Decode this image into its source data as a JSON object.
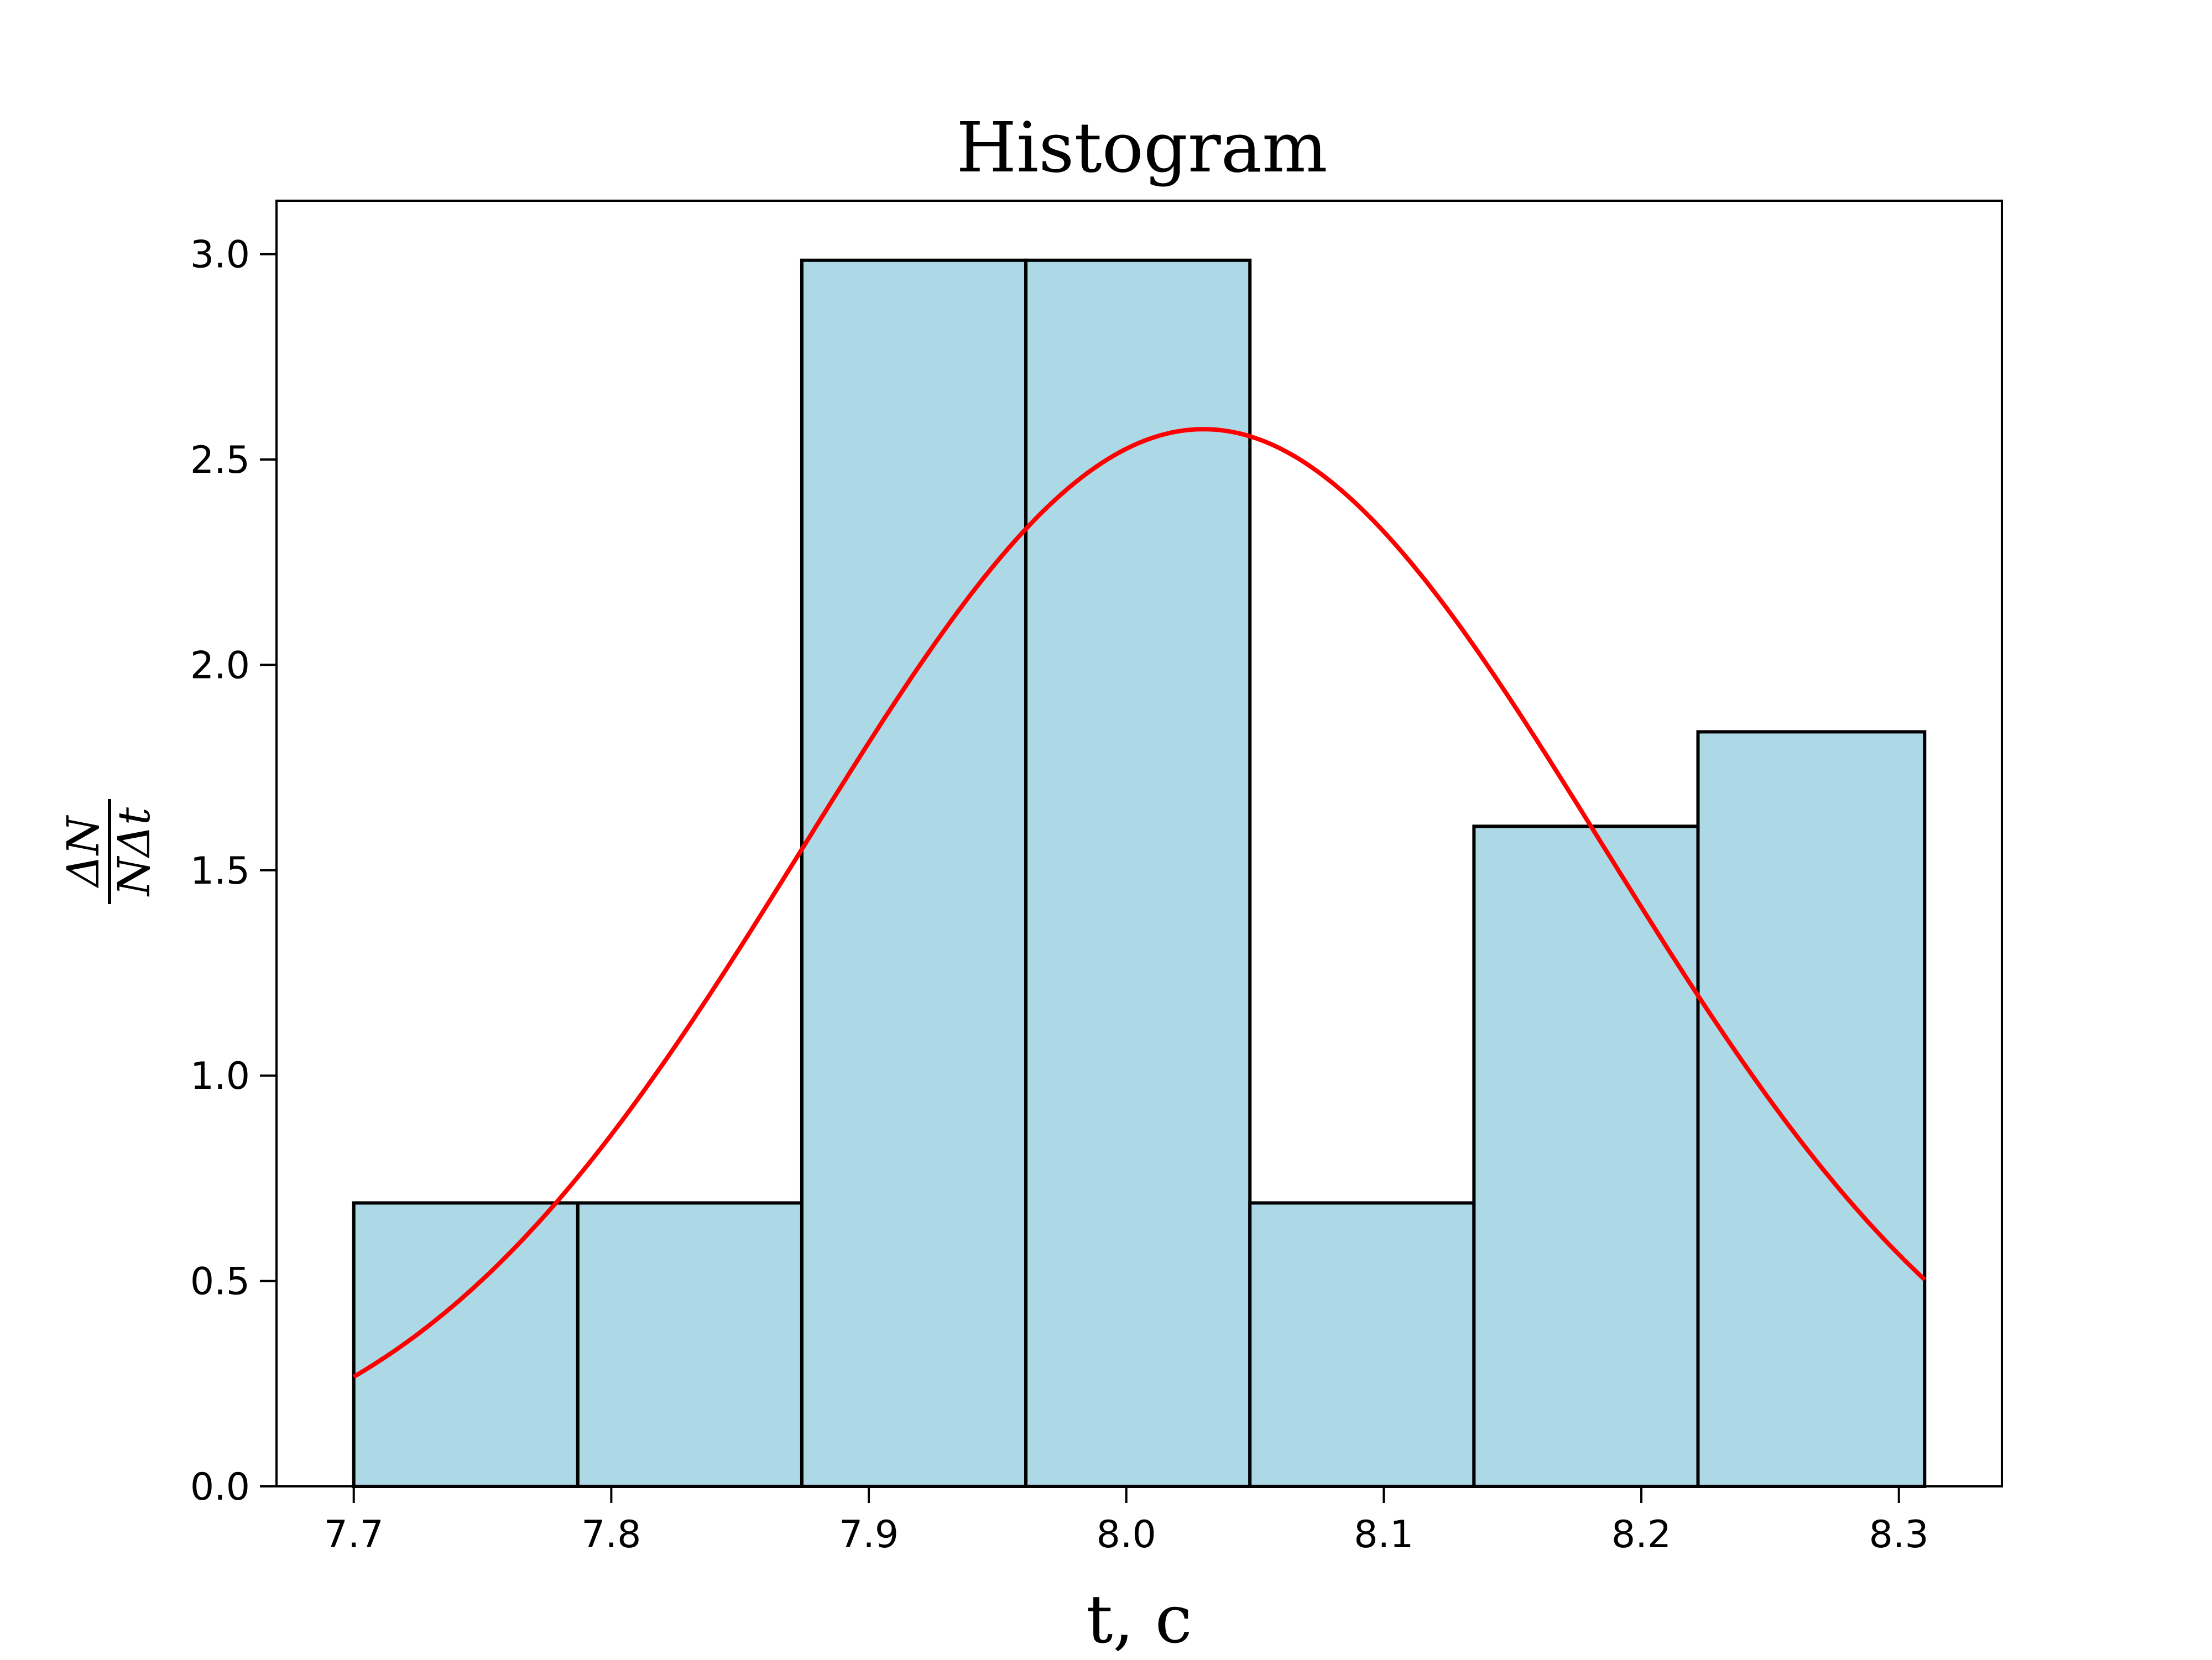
{
  "chart_data": {
    "type": "bar",
    "title": "Histogram",
    "xlabel": "t, c",
    "ylabel": {
      "numerator": "ΔN",
      "denominator": "NΔt"
    },
    "xlim": [
      7.67,
      8.34
    ],
    "ylim": [
      0,
      3.13
    ],
    "x_ticks": [
      "7.7",
      "7.8",
      "7.9",
      "8.0",
      "8.1",
      "8.2",
      "8.3"
    ],
    "y_ticks": [
      "0.0",
      "0.5",
      "1.0",
      "1.5",
      "2.0",
      "2.5",
      "3.0"
    ],
    "bin_edges": [
      7.7,
      7.787,
      7.874,
      7.961,
      8.048,
      8.135,
      8.222,
      8.31
    ],
    "values": [
      0.69,
      0.69,
      2.985,
      2.985,
      0.69,
      1.607,
      1.837
    ],
    "bar_color": "#add8e6",
    "bar_edge_color": "#000000",
    "series": [
      {
        "type": "line",
        "kind": "normal-fit",
        "color": "#ff0000",
        "mean": 8.03,
        "std": 0.155,
        "x_range": [
          7.7,
          8.31
        ]
      }
    ],
    "grid": false,
    "legend": "none"
  }
}
